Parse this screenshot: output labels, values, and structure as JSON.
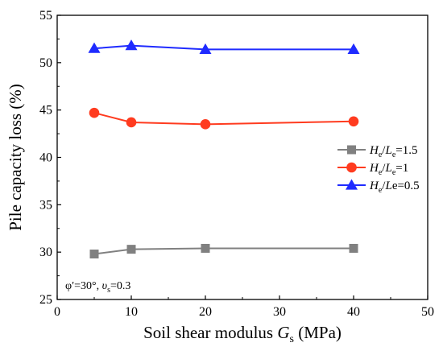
{
  "chart_data": {
    "type": "line",
    "xlabel": {
      "prefix": "Soil shear modulus ",
      "sym": "G",
      "sub": "s",
      "suffix": " (MPa)"
    },
    "ylabel": "Pile capacity loss (%)",
    "xlim": [
      0,
      50
    ],
    "ylim": [
      25,
      55
    ],
    "xticks": [
      0,
      10,
      20,
      30,
      40,
      50
    ],
    "yticks": [
      25,
      30,
      35,
      40,
      45,
      50,
      55
    ],
    "grid": false,
    "legend_position": "right",
    "annotation": {
      "phi": "φ′=30°, ",
      "nu": "υ",
      "nu_sub": "s",
      "nu_val": "=0.3"
    },
    "series": [
      {
        "name": "He/Le=1.5",
        "label_parts": {
          "h": "H",
          "h_sub": "e",
          "sep": "/",
          "l": "L",
          "l_sub": "e",
          "val": "=1.5"
        },
        "color": "#808080",
        "marker": "square",
        "x": [
          5,
          10,
          20,
          40
        ],
        "y": [
          29.8,
          30.3,
          30.4,
          30.4
        ]
      },
      {
        "name": "He/Le=1",
        "label_parts": {
          "h": "H",
          "h_sub": "e",
          "sep": "/",
          "l": "L",
          "l_sub": "e",
          "val": "=1"
        },
        "color": "#ff3b1f",
        "marker": "circle",
        "x": [
          5,
          10,
          20,
          40
        ],
        "y": [
          44.7,
          43.7,
          43.5,
          43.8
        ]
      },
      {
        "name": "He/Le=0.5",
        "label_parts": {
          "h": "H",
          "h_sub": "e",
          "sep": "/",
          "l": "L",
          "l_sub": "",
          "val": "e=0.5"
        },
        "color": "#1f2bff",
        "marker": "triangle",
        "x": [
          5,
          10,
          20,
          40
        ],
        "y": [
          51.5,
          51.8,
          51.4,
          51.4
        ]
      }
    ]
  }
}
